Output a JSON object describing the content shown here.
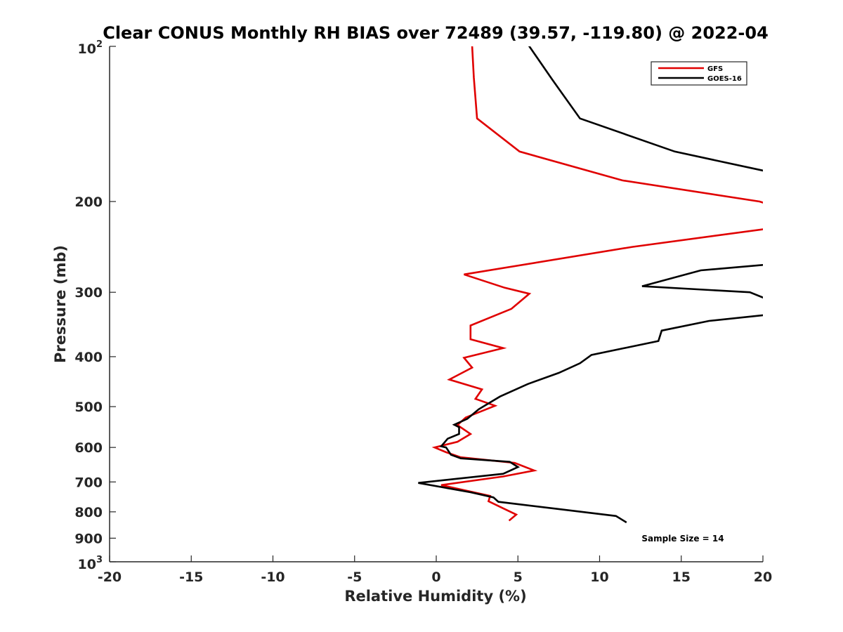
{
  "chart_data": {
    "type": "line",
    "title": "Clear CONUS Monthly RH BIAS over 72489 (39.57, -119.80) @ 2022-04",
    "xlabel": "Relative Humidity (%)",
    "ylabel": "Pressure (mb)",
    "xlim": [
      -20,
      20
    ],
    "ylim": [
      100,
      1000
    ],
    "yscale": "log",
    "y_reversed": true,
    "x_ticks": [
      -20,
      -15,
      -10,
      -5,
      0,
      5,
      10,
      15,
      20
    ],
    "x_tick_labels": [
      "-20",
      "-15",
      "-10",
      "-5",
      "0",
      "5",
      "10",
      "15",
      "20"
    ],
    "y_ticks": [
      {
        "value": 100,
        "base": "10",
        "exp": "2"
      },
      {
        "value": 200,
        "label": "200"
      },
      {
        "value": 300,
        "label": "300"
      },
      {
        "value": 400,
        "label": "400"
      },
      {
        "value": 500,
        "label": "500"
      },
      {
        "value": 600,
        "label": "600"
      },
      {
        "value": 700,
        "label": "700"
      },
      {
        "value": 800,
        "label": "800"
      },
      {
        "value": 900,
        "label": "900"
      },
      {
        "value": 1000,
        "base": "10",
        "exp": "3"
      }
    ],
    "legend_position": "top-right",
    "annotation": "Sample Size = 14",
    "series": [
      {
        "name": "GFS",
        "color": "#e00000",
        "points": [
          [
            2.2,
            100
          ],
          [
            2.3,
            115
          ],
          [
            2.5,
            138
          ],
          [
            5.1,
            160
          ],
          [
            11.4,
            182
          ],
          [
            19.8,
            200
          ],
          [
            20.2,
            202
          ],
          [
            20.2,
            226
          ],
          [
            12,
            245
          ],
          [
            1.7,
            277
          ],
          [
            4.2,
            294
          ],
          [
            5.7,
            302
          ],
          [
            4.6,
            323
          ],
          [
            2.1,
            348
          ],
          [
            2.1,
            370
          ],
          [
            4.1,
            385
          ],
          [
            1.7,
            402
          ],
          [
            2.2,
            420
          ],
          [
            0.8,
            443
          ],
          [
            2.8,
            463
          ],
          [
            2.4,
            483
          ],
          [
            3.6,
            498
          ],
          [
            1.8,
            525
          ],
          [
            1.3,
            543
          ],
          [
            2.1,
            565
          ],
          [
            1.3,
            585
          ],
          [
            -0.1,
            600
          ],
          [
            0.6,
            613
          ],
          [
            1.5,
            627
          ],
          [
            4.8,
            643
          ],
          [
            6,
            665
          ],
          [
            4.1,
            683
          ],
          [
            0.3,
            710
          ],
          [
            3.3,
            745
          ],
          [
            3.2,
            763
          ],
          [
            4,
            785
          ],
          [
            4.9,
            810
          ],
          [
            4.5,
            830
          ]
        ]
      },
      {
        "name": "GOES-16",
        "color": "#000000",
        "points": [
          [
            5.7,
            100
          ],
          [
            7.1,
            116
          ],
          [
            8.8,
            138
          ],
          [
            14.6,
            160
          ],
          [
            20.3,
            175
          ],
          [
            20.3,
            265
          ],
          [
            16.2,
            272
          ],
          [
            12.6,
            292
          ],
          [
            19.2,
            300
          ],
          [
            20.2,
            309
          ],
          [
            20.2,
            332
          ],
          [
            16.7,
            341
          ],
          [
            13.8,
            356
          ],
          [
            13.6,
            373
          ],
          [
            9.5,
            397
          ],
          [
            8.8,
            412
          ],
          [
            7.5,
            430
          ],
          [
            5.6,
            452
          ],
          [
            3.9,
            478
          ],
          [
            2.6,
            506
          ],
          [
            1.9,
            528
          ],
          [
            1.1,
            542
          ],
          [
            1.4,
            548
          ],
          [
            1.4,
            565
          ],
          [
            0.7,
            577
          ],
          [
            0.3,
            597
          ],
          [
            0.6,
            600
          ],
          [
            0.9,
            620
          ],
          [
            1.5,
            630
          ],
          [
            4.5,
            640
          ],
          [
            5,
            655
          ],
          [
            4.1,
            675
          ],
          [
            -1.1,
            703
          ],
          [
            2.1,
            733
          ],
          [
            3.5,
            750
          ],
          [
            3.8,
            765
          ],
          [
            7.5,
            790
          ],
          [
            11,
            815
          ],
          [
            11.6,
            837
          ]
        ]
      }
    ]
  }
}
